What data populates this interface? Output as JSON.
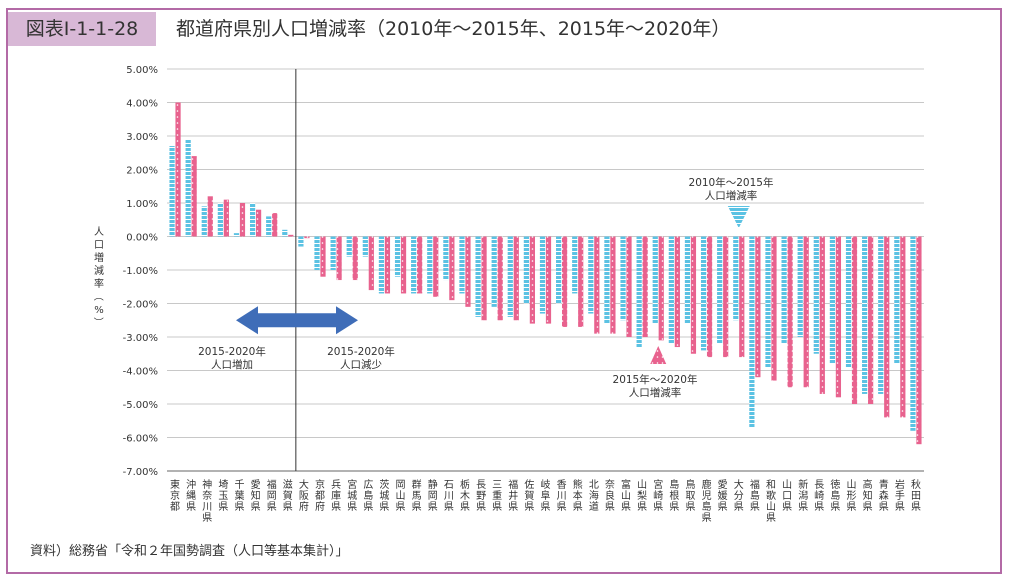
{
  "figure": {
    "label": "図表Ⅰ-1-1-28",
    "title": "都道府県別人口増減率（2010年～2015年、2015年～2020年）",
    "source": "資料）総務省「令和２年国勢調査（人口等基本集計）」"
  },
  "colors": {
    "s1": "#5bc2e3",
    "s2": "#e8628e",
    "arrow": "#3f6db8",
    "frame": "#b36aa6",
    "label_bg": "#d8b8d6"
  },
  "annotations": {
    "increase": [
      "2015-2020年",
      "人口増加"
    ],
    "decrease": [
      "2015-2020年",
      "人口減少"
    ],
    "s1_label": [
      "2010年～2015年",
      "人口増減率"
    ],
    "s2_label": [
      "2015年～2020年",
      "人口増減率"
    ]
  },
  "chart_data": {
    "type": "bar",
    "ylabel": "人口増減率（%）",
    "ylim": [
      -7,
      5
    ],
    "yticks": [
      "5.00%",
      "4.00%",
      "3.00%",
      "2.00%",
      "1.00%",
      "0.00%",
      "-1.00%",
      "-2.00%",
      "-3.00%",
      "-4.00%",
      "-5.00%",
      "-6.00%",
      "-7.00%"
    ],
    "categories": [
      "東京都",
      "沖縄県",
      "神奈川県",
      "埼玉県",
      "千葉県",
      "愛知県",
      "福岡県",
      "滋賀県",
      "大阪府",
      "京都府",
      "兵庫県",
      "宮城県",
      "広島県",
      "茨城県",
      "岡山県",
      "群馬県",
      "静岡県",
      "石川県",
      "栃木県",
      "長野県",
      "三重県",
      "福井県",
      "佐賀県",
      "岐阜県",
      "香川県",
      "熊本県",
      "北海道",
      "奈良県",
      "富山県",
      "山梨県",
      "宮崎県",
      "島根県",
      "鳥取県",
      "鹿児島県",
      "愛媛県",
      "大分県",
      "福島県",
      "和歌山県",
      "山口県",
      "新潟県",
      "長崎県",
      "徳島県",
      "山形県",
      "高知県",
      "青森県",
      "岩手県",
      "秋田県"
    ],
    "series": [
      {
        "name": "2010年～2015年",
        "values": [
          2.7,
          2.9,
          0.9,
          1.0,
          0.1,
          1.0,
          0.6,
          0.2,
          -0.3,
          -1.0,
          -1.0,
          -0.6,
          -0.6,
          -1.7,
          -1.2,
          -1.7,
          -1.7,
          -1.3,
          -1.7,
          -2.4,
          -2.1,
          -2.4,
          -2.0,
          -2.3,
          -2.0,
          -1.7,
          -2.3,
          -2.6,
          -2.5,
          -3.3,
          -2.6,
          -3.2,
          -2.6,
          -3.4,
          -3.2,
          -2.5,
          -5.7,
          -3.9,
          -3.2,
          -3.0,
          -3.5,
          -3.8,
          -3.9,
          -4.7,
          -4.7,
          -3.8,
          -5.8
        ]
      },
      {
        "name": "2015年～2020年",
        "values": [
          4.0,
          2.4,
          1.2,
          1.1,
          1.0,
          0.8,
          0.7,
          0.05,
          -0.05,
          -1.2,
          -1.3,
          -1.3,
          -1.6,
          -1.7,
          -1.7,
          -1.7,
          -1.8,
          -1.9,
          -2.1,
          -2.5,
          -2.5,
          -2.5,
          -2.6,
          -2.6,
          -2.7,
          -2.7,
          -2.9,
          -2.9,
          -3.0,
          -3.0,
          -3.1,
          -3.3,
          -3.5,
          -3.6,
          -3.6,
          -3.6,
          -4.2,
          -4.3,
          -4.5,
          -4.5,
          -4.7,
          -4.8,
          -5.0,
          -5.0,
          -5.4,
          -5.4,
          -6.2
        ]
      }
    ]
  }
}
